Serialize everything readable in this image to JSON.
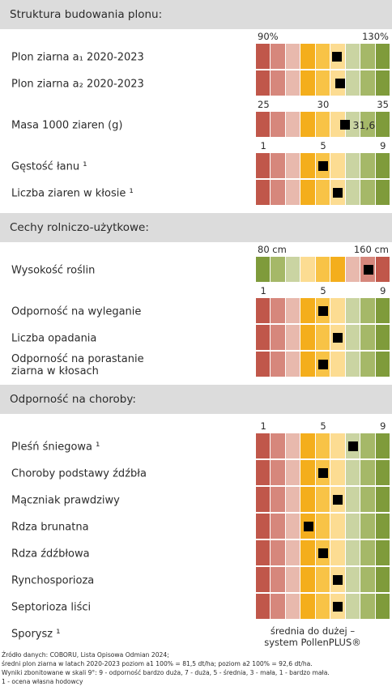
{
  "colors": [
    "#c0574a",
    "#d6877c",
    "#e8b9ad",
    "#f4ae1c",
    "#f8c346",
    "#fcdc92",
    "#cad4a2",
    "#a5b868",
    "#7f9b3b"
  ],
  "sections": [
    {
      "title": "Struktura budowania plonu:",
      "scales": [
        {
          "lim": [
            90,
            130
          ],
          "ticks": [
            {
              "value": 90,
              "label": "90%"
            },
            {
              "value": 130,
              "label": "130%"
            }
          ],
          "rows": [
            {
              "label": "Plon ziarna a₁ 2020-2023",
              "value": 114
            },
            {
              "label": "Plon ziarna a₂ 2020-2023",
              "value": 115
            }
          ]
        },
        {
          "lim": [
            25,
            35
          ],
          "ticks": [
            25,
            30,
            35
          ],
          "rows": [
            {
              "label": "Masa 1000 ziaren (g)",
              "value": 31.6,
              "value_label": "31,6"
            }
          ]
        },
        {
          "lim": [
            0.5,
            9.5
          ],
          "ticks": [
            1,
            5,
            9
          ],
          "rows": [
            {
              "label": "Gęstość łanu ¹",
              "value": 5
            },
            {
              "label": "Liczba ziaren w kłosie ¹",
              "value": 6
            }
          ]
        }
      ]
    },
    {
      "title": "Cechy rolniczo-użytkowe:",
      "scales": [
        {
          "lim": [
            80,
            160
          ],
          "reversed": true,
          "ticks": [
            {
              "value": 80,
              "label": "80 cm"
            },
            {
              "value": 160,
              "label": "160 cm"
            }
          ],
          "rows": [
            {
              "label": "Wysokość roślin",
              "value": 147
            }
          ]
        },
        {
          "lim": [
            0.5,
            9.5
          ],
          "ticks": [
            1,
            5,
            9
          ],
          "rows": [
            {
              "label": "Odporność na wyleganie",
              "value": 5
            },
            {
              "label": "Liczba opadania",
              "value": 6
            },
            {
              "label": "Odporność na porastanie\nziarna w kłosach",
              "value": 5
            }
          ]
        }
      ]
    },
    {
      "title": "Odporność na choroby:",
      "scales": [
        {
          "lim": [
            0.5,
            9.5
          ],
          "ticks": [
            1,
            5,
            9
          ],
          "rows": [
            {
              "label": "Pleśń śniegowa ¹",
              "value": 7
            },
            {
              "label": "Choroby podstawy źdźbła",
              "value": 5
            },
            {
              "label": "Mączniak prawdziwy",
              "value": 6
            },
            {
              "label": "Rdza brunatna",
              "value": 4
            },
            {
              "label": "Rdza źdźbłowa",
              "value": 5
            },
            {
              "label": "Rynchosporioza",
              "value": 6
            },
            {
              "label": "Septorioza liści",
              "value": 6
            },
            {
              "label": "Sporysz ¹",
              "text": "średnia do dużej –\nsystem PollenPLUS®"
            }
          ]
        }
      ]
    }
  ],
  "notes": [
    "Źródło danych: COBORU, Lista Opisowa Odmian 2024;",
    "średni plon ziarna w latach 2020-2023 poziom a1 100% = 81,5 dt/ha; poziom a2 100% = 92,6 dt/ha.",
    "Wyniki zbonitowane w skali 9°: 9 - odporność bardzo duża, 7 - duża, 5 - średnia, 3 - mała, 1 - bardzo mała.",
    "1 - ocena własna hodowcy"
  ]
}
